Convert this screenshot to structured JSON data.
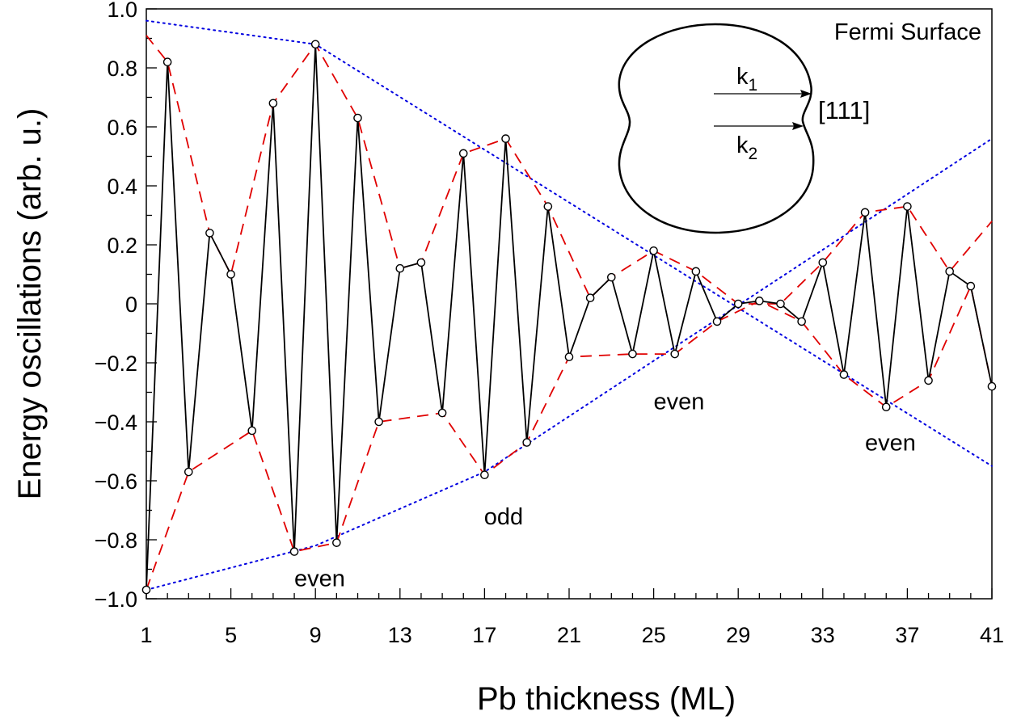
{
  "chart_data": {
    "type": "line",
    "xlabel": "Pb thickness  (ML)",
    "ylabel": "Energy oscillations (arb. u.)",
    "xlim": [
      1,
      41
    ],
    "ylim": [
      -1.0,
      1.0
    ],
    "x_ticks": [
      1,
      5,
      9,
      13,
      17,
      21,
      25,
      29,
      33,
      37,
      41
    ],
    "x_tick_labels": [
      "1",
      "5",
      "9",
      "13",
      "17",
      "21",
      "25",
      "29",
      "33",
      "37",
      "41"
    ],
    "y_ticks": [
      -1.0,
      -0.8,
      -0.6,
      -0.4,
      -0.2,
      0,
      0.2,
      0.4,
      0.6,
      0.8,
      1.0
    ],
    "y_tick_labels": [
      "−1.0",
      "−0.8",
      "−0.6",
      "−0.4",
      "−0.2",
      "0",
      "0.2",
      "0.4",
      "0.6",
      "0.8",
      "1.0"
    ],
    "grid": false,
    "series": [
      {
        "kind": "data-markers",
        "color": "#000000",
        "x": [
          1,
          2,
          3,
          4,
          5,
          6,
          7,
          8,
          9,
          10,
          11,
          12,
          13,
          14,
          15,
          16,
          17,
          18,
          19,
          20,
          21,
          22,
          23,
          24,
          25,
          26,
          27,
          28,
          29,
          30,
          31,
          32,
          33,
          34,
          35,
          36,
          37,
          38,
          39,
          40,
          41
        ],
        "y": [
          -0.97,
          0.82,
          -0.57,
          0.24,
          0.1,
          -0.43,
          0.68,
          -0.84,
          0.88,
          -0.81,
          0.63,
          -0.4,
          0.12,
          0.14,
          -0.37,
          0.51,
          -0.58,
          0.56,
          -0.47,
          0.33,
          -0.18,
          0.02,
          0.09,
          -0.17,
          0.18,
          -0.17,
          0.11,
          -0.06,
          0.0,
          0.01,
          0.0,
          -0.06,
          0.14,
          -0.24,
          0.31,
          -0.35,
          0.33,
          -0.26,
          0.11,
          0.06,
          -0.28
        ]
      },
      {
        "kind": "envelope-upper",
        "color": "#e00000",
        "style": "dashed",
        "x": [
          1,
          2,
          4,
          5,
          7,
          9,
          11,
          13,
          14,
          16,
          18,
          20,
          22,
          23,
          25,
          27,
          29,
          31,
          33,
          35,
          37,
          39,
          41
        ],
        "y": [
          0.91,
          0.82,
          0.24,
          0.1,
          0.68,
          0.88,
          0.63,
          0.12,
          0.14,
          0.51,
          0.56,
          0.33,
          0.02,
          0.09,
          0.18,
          0.11,
          0.0,
          0.0,
          0.14,
          0.31,
          0.33,
          0.11,
          0.28
        ]
      },
      {
        "kind": "envelope-lower",
        "color": "#e00000",
        "style": "dashed",
        "x": [
          1,
          3,
          6,
          8,
          10,
          12,
          15,
          17,
          19,
          21,
          24,
          26,
          28,
          30,
          32,
          34,
          36,
          38,
          40,
          41
        ],
        "y": [
          -0.97,
          -0.57,
          -0.43,
          -0.84,
          -0.81,
          -0.4,
          -0.37,
          -0.58,
          -0.47,
          -0.18,
          -0.17,
          -0.17,
          -0.06,
          0.01,
          -0.06,
          -0.24,
          -0.35,
          -0.26,
          0.06,
          -0.28
        ]
      },
      {
        "kind": "decay-bound-upper",
        "color": "#0000e0",
        "style": "dotted",
        "x": [
          1,
          9,
          41
        ],
        "y": [
          0.96,
          0.88,
          -0.55
        ]
      },
      {
        "kind": "decay-bound-lower",
        "color": "#0000e0",
        "style": "dotted",
        "x": [
          1,
          9,
          17,
          41
        ],
        "y": [
          -0.97,
          -0.82,
          -0.57,
          0.56
        ]
      }
    ],
    "annotations": [
      {
        "text": "even",
        "x": 9.2,
        "y": -0.93
      },
      {
        "text": "odd",
        "x": 17.9,
        "y": -0.72
      },
      {
        "text": "even",
        "x": 26.2,
        "y": -0.33
      },
      {
        "text": "even",
        "x": 36.2,
        "y": -0.47
      }
    ],
    "inset": {
      "title": "Fermi Surface",
      "k1_base": "k",
      "k1_sub": "1",
      "k2_base": "k",
      "k2_sub": "2",
      "direction": "[111]"
    }
  },
  "colors": {
    "data_line": "#000000",
    "envelope": "#e00000",
    "decay_bound": "#0000e0"
  }
}
